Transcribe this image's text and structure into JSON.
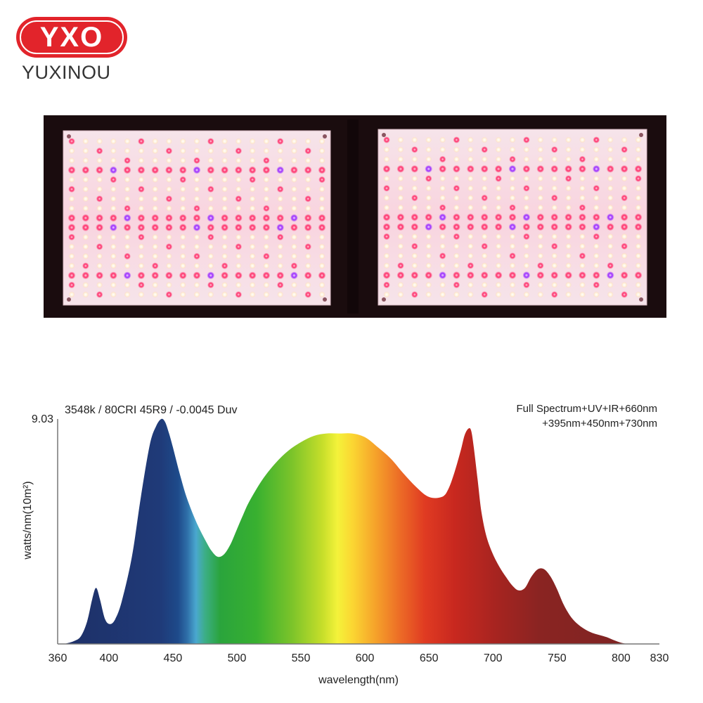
{
  "brand": {
    "logo_text": "YXO",
    "name": "YUXINOU",
    "color": "#e2242b"
  },
  "product_photo": {
    "icon": "led-quantum-board-panel-icon",
    "frame_color": "#1a0c0e",
    "board_color": "#f4eaec",
    "led_colors": {
      "warm_white": "#fff1d8",
      "red": "#ff2f6a",
      "violet": "#9a2cff"
    }
  },
  "chart_data": {
    "type": "area",
    "title": "3548k / 80CRI 45R9 / -0.0045 Duv",
    "subtitle": [
      "Full Spectrum+UV+IR+660nm",
      "+395nm+450nm+730nm"
    ],
    "xlabel": "wavelength(nm)",
    "ylabel": "watts/nm(10m²)",
    "xlim": [
      360,
      830
    ],
    "ylim": [
      0,
      9.03
    ],
    "y_tick_labels": [
      "9.03"
    ],
    "x_ticks": [
      360,
      400,
      450,
      500,
      550,
      600,
      650,
      700,
      750,
      800,
      830
    ],
    "grid": false,
    "series": [
      {
        "x": [
          365,
          372,
          378,
          383,
          387,
          390,
          393,
          397,
          401,
          405,
          410,
          418,
          425,
          432,
          437,
          441,
          444,
          447,
          450,
          455,
          460,
          465,
          470,
          475,
          480,
          485,
          490,
          495,
          500,
          505,
          510,
          520,
          530,
          540,
          550,
          560,
          570,
          580,
          590,
          600,
          610,
          620,
          630,
          640,
          650,
          660,
          665,
          670,
          675,
          678,
          681,
          683,
          685,
          688,
          691,
          695,
          700,
          705,
          710,
          715,
          720,
          725,
          730,
          735,
          740,
          745,
          750,
          755,
          760,
          765,
          770,
          775,
          780,
          785,
          790,
          795,
          800,
          805
        ],
        "y": [
          0.0,
          0.1,
          0.3,
          0.9,
          1.8,
          2.25,
          1.8,
          1.0,
          0.8,
          1.0,
          1.7,
          3.5,
          5.9,
          8.0,
          8.75,
          9.03,
          8.9,
          8.45,
          7.9,
          6.9,
          6.0,
          5.3,
          4.7,
          4.2,
          3.75,
          3.5,
          3.6,
          4.0,
          4.6,
          5.2,
          5.75,
          6.6,
          7.25,
          7.75,
          8.1,
          8.35,
          8.45,
          8.45,
          8.45,
          8.3,
          7.9,
          7.45,
          6.85,
          6.3,
          5.9,
          5.9,
          6.2,
          6.9,
          7.8,
          8.4,
          8.65,
          8.55,
          7.9,
          6.6,
          5.3,
          4.3,
          3.6,
          3.1,
          2.7,
          2.35,
          2.15,
          2.25,
          2.7,
          3.0,
          3.0,
          2.7,
          2.2,
          1.6,
          1.15,
          0.85,
          0.65,
          0.5,
          0.4,
          0.33,
          0.25,
          0.14,
          0.05,
          0.0
        ]
      }
    ]
  }
}
